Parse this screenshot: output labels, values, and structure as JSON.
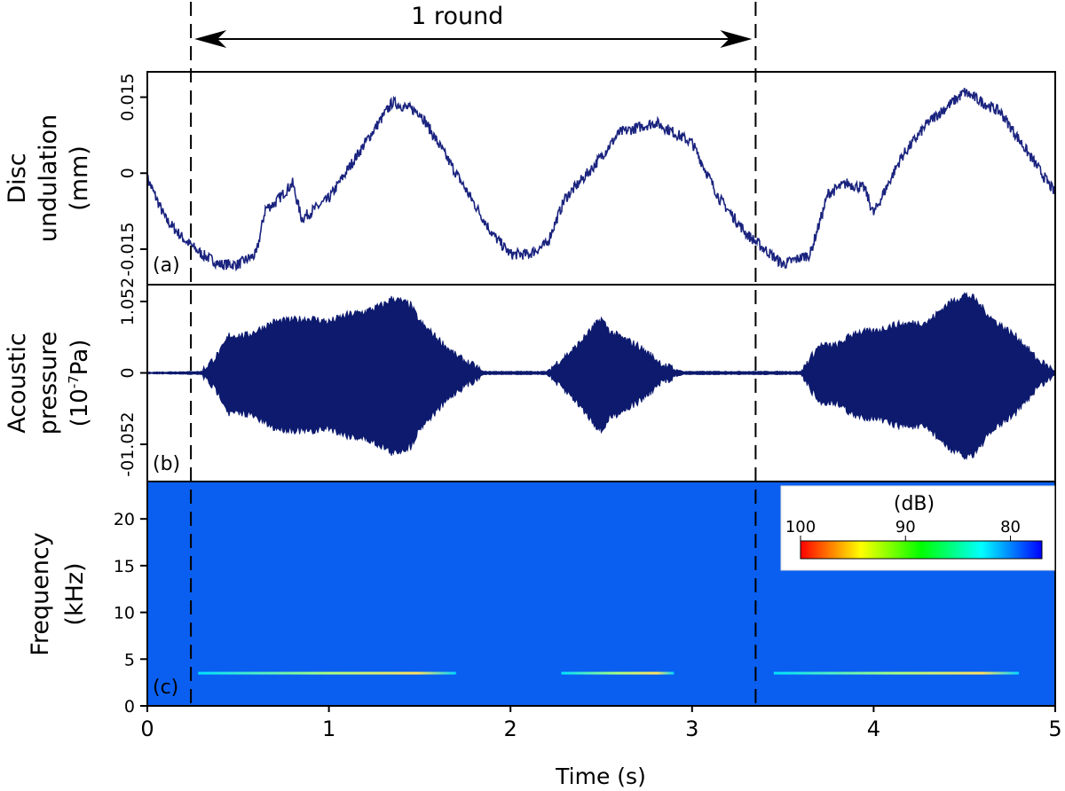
{
  "chart_data": [
    {
      "type": "line",
      "panel_label": "(a)",
      "ylabel_lines": [
        "Disc",
        "undulation",
        "(mm)"
      ],
      "yticks": [
        {
          "value": 0.015,
          "label": "0.015"
        },
        {
          "value": 0,
          "label": "0"
        },
        {
          "value": -0.015,
          "label": "-0.015"
        }
      ],
      "ylim": [
        -0.022,
        0.02
      ],
      "xlim": [
        0,
        5
      ],
      "color": "#1a237e",
      "series": [
        {
          "x": [
            0.0,
            0.1,
            0.2,
            0.3,
            0.4,
            0.5,
            0.6,
            0.65,
            0.7,
            0.8,
            0.85,
            1.0,
            1.2,
            1.35,
            1.5,
            1.7,
            1.9,
            2.0,
            2.1,
            2.2,
            2.3,
            2.45,
            2.6,
            2.8,
            3.0,
            3.15,
            3.3,
            3.4,
            3.5,
            3.65,
            3.75,
            3.85,
            3.95,
            4.0,
            4.15,
            4.3,
            4.5,
            4.7,
            4.85,
            5.0
          ],
          "y": [
            -0.001,
            -0.009,
            -0.013,
            -0.016,
            -0.018,
            -0.018,
            -0.016,
            -0.007,
            -0.006,
            -0.002,
            -0.009,
            -0.005,
            0.006,
            0.014,
            0.012,
            0.0,
            -0.012,
            -0.016,
            -0.016,
            -0.014,
            -0.005,
            0.001,
            0.008,
            0.01,
            0.006,
            -0.005,
            -0.012,
            -0.015,
            -0.018,
            -0.016,
            -0.004,
            -0.002,
            -0.003,
            -0.008,
            0.003,
            0.01,
            0.016,
            0.012,
            0.004,
            -0.004
          ]
        }
      ]
    },
    {
      "type": "area",
      "panel_label": "(b)",
      "ylabel_lines": [
        "Acoustic",
        "pressure",
        "(10^-7Pa)"
      ],
      "ylabel_unit_base": "(10",
      "ylabel_unit_exp": "-7",
      "ylabel_unit_tail": "Pa)",
      "yticks": [
        {
          "value": 1.052,
          "label": "1.052"
        },
        {
          "value": 0,
          "label": "0"
        },
        {
          "value": -1.052,
          "label": "-01.052"
        }
      ],
      "ylim": [
        -1.6,
        1.3
      ],
      "xlim": [
        0,
        5
      ],
      "color": "#0d1a6e",
      "envelope": {
        "x": [
          0.0,
          0.3,
          0.4,
          0.45,
          0.55,
          0.7,
          0.9,
          1.0,
          1.1,
          1.2,
          1.3,
          1.35,
          1.45,
          1.5,
          1.6,
          1.7,
          1.85,
          2.2,
          2.35,
          2.45,
          2.5,
          2.55,
          2.7,
          2.85,
          2.95,
          3.6,
          3.7,
          3.8,
          3.9,
          4.0,
          4.1,
          4.3,
          4.4,
          4.5,
          4.55,
          4.65,
          4.8,
          4.9,
          5.0
        ],
        "amp": [
          0.01,
          0.02,
          0.3,
          0.55,
          0.55,
          0.75,
          0.8,
          0.75,
          0.85,
          0.9,
          1.0,
          1.1,
          1.0,
          0.75,
          0.5,
          0.25,
          0.02,
          0.02,
          0.35,
          0.65,
          0.8,
          0.6,
          0.4,
          0.1,
          0.02,
          0.02,
          0.4,
          0.4,
          0.6,
          0.6,
          0.7,
          0.75,
          1.0,
          1.15,
          1.1,
          0.8,
          0.5,
          0.2,
          0.02
        ]
      }
    },
    {
      "type": "heatmap",
      "panel_label": "(c)",
      "ylabel_lines": [
        "Frequency",
        "(kHz)"
      ],
      "yticks": [
        {
          "value": 0,
          "label": "0"
        },
        {
          "value": 5,
          "label": "5"
        },
        {
          "value": 10,
          "label": "10"
        },
        {
          "value": 15,
          "label": "15"
        },
        {
          "value": 20,
          "label": "20"
        }
      ],
      "ylim": [
        0,
        24
      ],
      "xlim": [
        0,
        5
      ],
      "background_color": "#0a5ff0",
      "tonal_lines": [
        {
          "freq_khz": 3.5,
          "x_start": 0.28,
          "x_end": 1.7
        },
        {
          "freq_khz": 3.5,
          "x_start": 2.28,
          "x_end": 2.9
        },
        {
          "freq_khz": 3.5,
          "x_start": 3.45,
          "x_end": 4.8
        }
      ],
      "colorbar": {
        "title": "(dB)",
        "ticks": [
          {
            "value": 100,
            "label": "100"
          },
          {
            "value": 90,
            "label": "90"
          },
          {
            "value": 80,
            "label": "80"
          }
        ],
        "range": [
          100,
          77
        ],
        "colors": [
          "#ff0000",
          "#ffff00",
          "#00ff00",
          "#00ffff",
          "#0000ff"
        ]
      }
    }
  ],
  "shared_x": {
    "xlabel": "Time (s)",
    "xticks": [
      {
        "value": 0,
        "label": "0"
      },
      {
        "value": 1,
        "label": "1"
      },
      {
        "value": 2,
        "label": "2"
      },
      {
        "value": 3,
        "label": "3"
      },
      {
        "value": 4,
        "label": "4"
      },
      {
        "value": 5,
        "label": "5"
      }
    ],
    "xlim": [
      0,
      5
    ]
  },
  "annotation": {
    "text": "1 round",
    "x_start": 0.24,
    "x_end": 3.35
  }
}
